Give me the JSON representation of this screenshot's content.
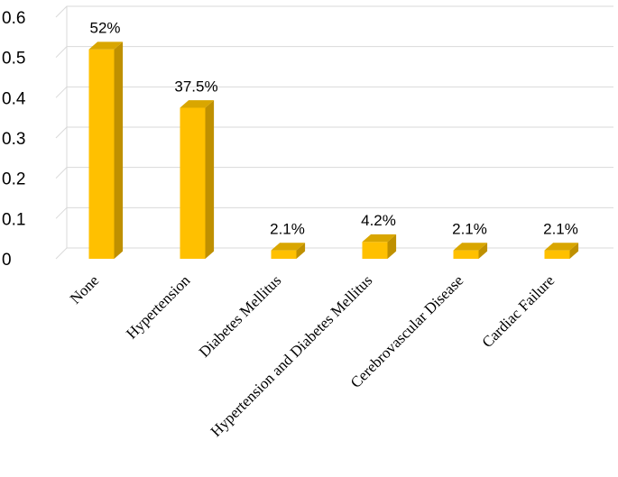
{
  "chart_data": {
    "type": "bar",
    "categories": [
      "None",
      "Hypertension",
      "Diabetes Mellitus",
      "Hypertension and Diabetes Mellitus",
      "Cerebrovascular Disease",
      "Cardiac Failure"
    ],
    "values": [
      0.52,
      0.375,
      0.021,
      0.042,
      0.021,
      0.021
    ],
    "data_labels": [
      "52%",
      "37.5%",
      "2.1%",
      "4.2%",
      "2.1%",
      "2.1%"
    ],
    "yticks": [
      "0",
      "0.1",
      "0.2",
      "0.3",
      "0.4",
      "0.5",
      "0.6"
    ],
    "ylim": [
      0,
      0.6
    ],
    "grid": true,
    "style": "3d",
    "colors": {
      "bar_front": "#FFC000",
      "bar_side": "#BF9000",
      "bar_top": "#D9A600"
    }
  }
}
